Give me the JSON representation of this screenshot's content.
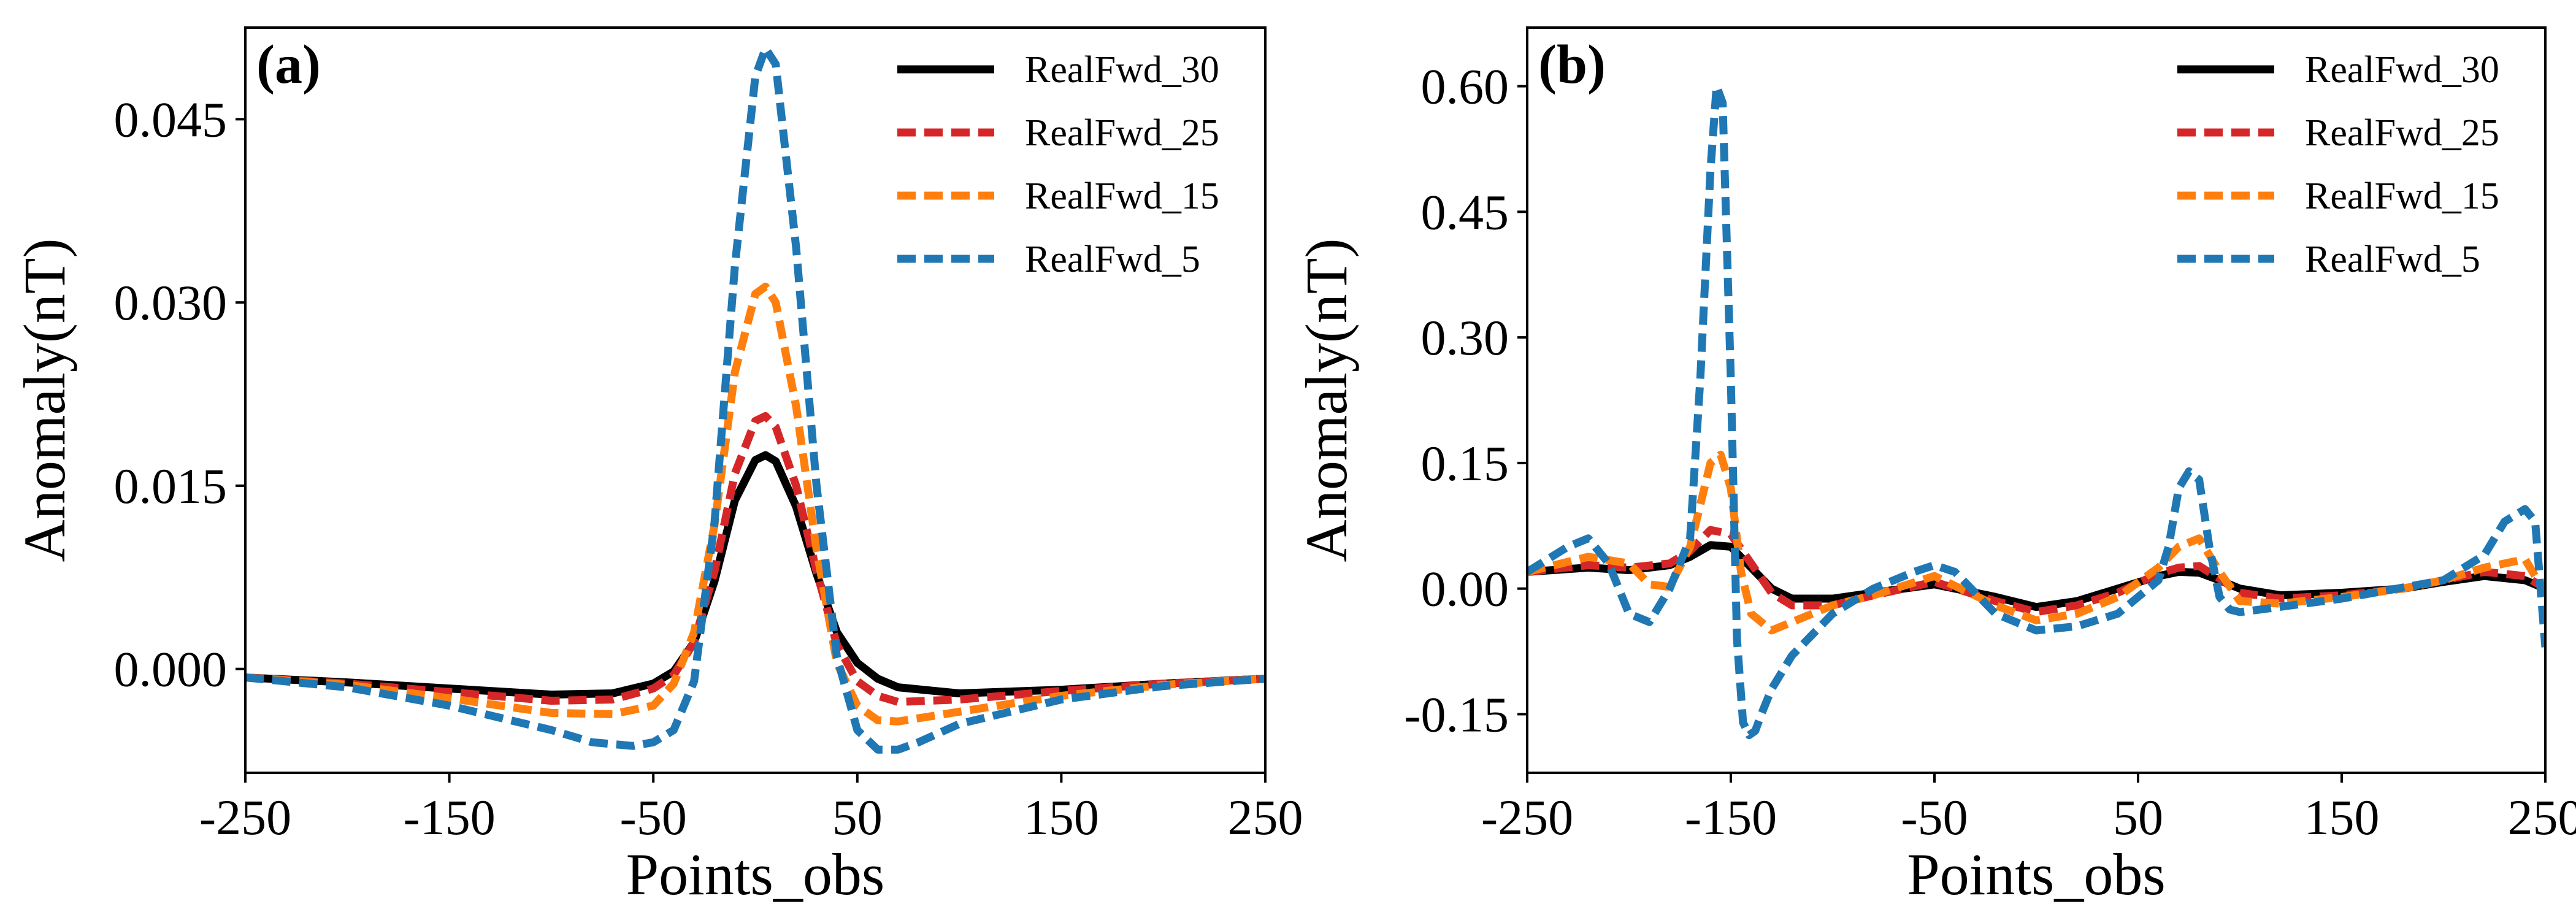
{
  "chart_data": [
    {
      "type": "line",
      "panel_tag": "(a)",
      "xlabel": "Points_obs",
      "ylabel": "Anomaly(nT)",
      "xlim": [
        -250,
        250
      ],
      "ylim": [
        -0.0085,
        0.0525
      ],
      "xticks": [
        -250,
        -150,
        -50,
        50,
        150,
        250
      ],
      "xtick_labels": [
        "-250",
        "-150",
        "-50",
        "50",
        "150",
        "250"
      ],
      "yticks": [
        0.0,
        0.015,
        0.03,
        0.045
      ],
      "ytick_labels": [
        "0.000",
        "0.015",
        "0.030",
        "0.045"
      ],
      "legend_position": "upper-right",
      "series": [
        {
          "name": "RealFwd_30",
          "color": "#000000",
          "style": "solid",
          "x": [
            -250,
            -200,
            -150,
            -100,
            -70,
            -50,
            -40,
            -30,
            -20,
            -10,
            0,
            5,
            10,
            20,
            30,
            40,
            50,
            60,
            70,
            100,
            150,
            200,
            250
          ],
          "y": [
            -0.0007,
            -0.0011,
            -0.0016,
            -0.0021,
            -0.002,
            -0.0012,
            -0.0002,
            0.0022,
            0.0072,
            0.0138,
            0.0171,
            0.0175,
            0.017,
            0.0133,
            0.0078,
            0.003,
            0.0005,
            -0.0008,
            -0.0015,
            -0.002,
            -0.0017,
            -0.0012,
            -0.0008
          ]
        },
        {
          "name": "RealFwd_25",
          "color": "#d62728",
          "style": "dashed",
          "x": [
            -250,
            -200,
            -150,
            -100,
            -70,
            -50,
            -40,
            -30,
            -20,
            -10,
            0,
            5,
            10,
            20,
            30,
            40,
            50,
            60,
            70,
            100,
            150,
            200,
            250
          ],
          "y": [
            -0.0007,
            -0.0012,
            -0.0019,
            -0.0026,
            -0.0025,
            -0.0016,
            -0.0005,
            0.0022,
            0.008,
            0.016,
            0.0203,
            0.0207,
            0.0198,
            0.015,
            0.008,
            0.002,
            -0.001,
            -0.0022,
            -0.0027,
            -0.0025,
            -0.0018,
            -0.0012,
            -0.0008
          ]
        },
        {
          "name": "RealFwd_15",
          "color": "#ff7f0e",
          "style": "dashed",
          "x": [
            -250,
            -200,
            -150,
            -100,
            -70,
            -50,
            -40,
            -30,
            -20,
            -10,
            0,
            5,
            10,
            20,
            30,
            40,
            50,
            60,
            70,
            100,
            150,
            200,
            250
          ],
          "y": [
            -0.0007,
            -0.0013,
            -0.0024,
            -0.0036,
            -0.0037,
            -0.003,
            -0.0012,
            0.003,
            0.0118,
            0.0243,
            0.0307,
            0.0313,
            0.03,
            0.0215,
            0.0098,
            0.0005,
            -0.003,
            -0.0042,
            -0.0043,
            -0.0035,
            -0.0022,
            -0.0013,
            -0.0008
          ]
        },
        {
          "name": "RealFwd_5",
          "color": "#1f77b4",
          "style": "dashed",
          "x": [
            -250,
            -200,
            -150,
            -100,
            -80,
            -60,
            -50,
            -40,
            -30,
            -20,
            -10,
            0,
            5,
            10,
            20,
            30,
            40,
            50,
            60,
            70,
            80,
            100,
            150,
            200,
            250
          ],
          "y": [
            -0.0007,
            -0.0015,
            -0.003,
            -0.005,
            -0.006,
            -0.0063,
            -0.006,
            -0.005,
            -0.001,
            0.012,
            0.033,
            0.0485,
            0.0508,
            0.0495,
            0.0345,
            0.015,
            0.001,
            -0.005,
            -0.0066,
            -0.0066,
            -0.006,
            -0.0045,
            -0.0025,
            -0.0014,
            -0.0008
          ]
        }
      ]
    },
    {
      "type": "line",
      "panel_tag": "(b)",
      "xlabel": "Points_obs",
      "ylabel": "Anomaly(nT)",
      "xlim": [
        -250,
        250
      ],
      "ylim": [
        -0.22,
        0.67
      ],
      "xticks": [
        -250,
        -150,
        -50,
        50,
        150,
        250
      ],
      "xtick_labels": [
        "-250",
        "-150",
        "-50",
        "50",
        "150",
        "250"
      ],
      "yticks": [
        -0.15,
        0.0,
        0.15,
        0.3,
        0.45,
        0.6
      ],
      "ytick_labels": [
        "-0.15",
        "0.00",
        "0.15",
        "0.30",
        "0.45",
        "0.60"
      ],
      "legend_position": "upper-right",
      "series": [
        {
          "name": "RealFwd_30",
          "color": "#000000",
          "style": "solid",
          "x": [
            -250,
            -220,
            -200,
            -180,
            -170,
            -160,
            -150,
            -140,
            -130,
            -120,
            -100,
            -80,
            -50,
            -20,
            0,
            20,
            40,
            60,
            70,
            80,
            90,
            100,
            120,
            150,
            180,
            200,
            220,
            240,
            250
          ],
          "y": [
            0.02,
            0.025,
            0.022,
            0.028,
            0.038,
            0.052,
            0.05,
            0.025,
            0.0,
            -0.012,
            -0.012,
            -0.005,
            0.005,
            -0.01,
            -0.022,
            -0.015,
            0.0,
            0.015,
            0.02,
            0.019,
            0.01,
            0.0,
            -0.008,
            -0.005,
            0.0,
            0.008,
            0.015,
            0.01,
            0.0
          ]
        },
        {
          "name": "RealFwd_25",
          "color": "#d62728",
          "style": "dashed",
          "x": [
            -250,
            -220,
            -200,
            -180,
            -170,
            -160,
            -150,
            -140,
            -130,
            -120,
            -100,
            -80,
            -50,
            -20,
            0,
            20,
            40,
            60,
            70,
            80,
            90,
            100,
            120,
            150,
            180,
            200,
            220,
            240,
            250
          ],
          "y": [
            0.02,
            0.028,
            0.025,
            0.03,
            0.045,
            0.07,
            0.065,
            0.03,
            -0.005,
            -0.02,
            -0.02,
            -0.008,
            0.008,
            -0.015,
            -0.028,
            -0.02,
            -0.005,
            0.018,
            0.025,
            0.027,
            0.012,
            -0.005,
            -0.012,
            -0.008,
            0.0,
            0.01,
            0.02,
            0.015,
            0.0
          ]
        },
        {
          "name": "RealFwd_15",
          "color": "#ff7f0e",
          "style": "dashed",
          "x": [
            -250,
            -220,
            -200,
            -190,
            -180,
            -170,
            -160,
            -155,
            -150,
            -145,
            -140,
            -130,
            -120,
            -100,
            -80,
            -50,
            -20,
            0,
            20,
            40,
            60,
            70,
            80,
            90,
            100,
            120,
            150,
            180,
            200,
            220,
            240,
            250
          ],
          "y": [
            0.02,
            0.038,
            0.03,
            0.005,
            0.002,
            0.05,
            0.15,
            0.16,
            0.12,
            0.02,
            -0.03,
            -0.05,
            -0.04,
            -0.02,
            -0.008,
            0.015,
            -0.02,
            -0.038,
            -0.03,
            -0.01,
            0.025,
            0.05,
            0.06,
            0.02,
            -0.015,
            -0.018,
            -0.01,
            0.0,
            0.01,
            0.025,
            0.035,
            -0.005
          ]
        },
        {
          "name": "RealFwd_5",
          "color": "#1f77b4",
          "style": "dashed",
          "x": [
            -250,
            -230,
            -220,
            -210,
            -200,
            -190,
            -180,
            -170,
            -165,
            -160,
            -157,
            -154,
            -150,
            -147,
            -144,
            -141,
            -138,
            -135,
            -130,
            -120,
            -100,
            -80,
            -60,
            -50,
            -40,
            -20,
            0,
            20,
            40,
            60,
            65,
            70,
            75,
            80,
            85,
            90,
            95,
            100,
            110,
            150,
            200,
            220,
            230,
            240,
            245,
            250
          ],
          "y": [
            0.02,
            0.05,
            0.06,
            0.03,
            -0.03,
            -0.04,
            0.0,
            0.06,
            0.25,
            0.5,
            0.6,
            0.58,
            0.25,
            -0.06,
            -0.16,
            -0.175,
            -0.17,
            -0.15,
            -0.12,
            -0.08,
            -0.03,
            0.0,
            0.02,
            0.028,
            0.02,
            -0.03,
            -0.05,
            -0.045,
            -0.03,
            0.01,
            0.05,
            0.12,
            0.14,
            0.13,
            0.05,
            -0.01,
            -0.025,
            -0.028,
            -0.025,
            -0.012,
            0.01,
            0.04,
            0.08,
            0.095,
            0.08,
            -0.07
          ]
        }
      ]
    }
  ]
}
